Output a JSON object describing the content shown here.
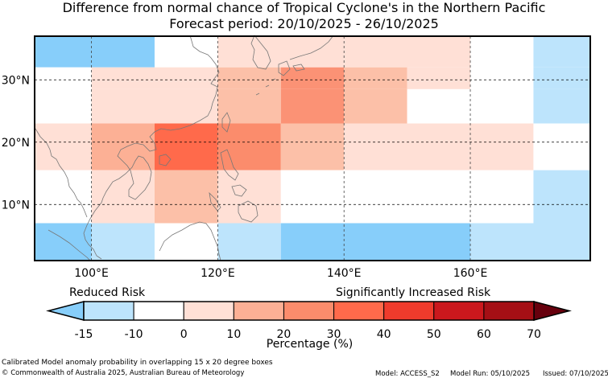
{
  "title": "Difference from normal chance of Tropical Cyclone's in the Northern Pacific",
  "subtitle": "Forecast period: 20/10/2025 - 26/10/2025",
  "map": {
    "lon_range": [
      91,
      179
    ],
    "lat_range": [
      1,
      37
    ],
    "lon_ticks": [
      {
        "value": 100,
        "label": "100°E"
      },
      {
        "value": 120,
        "label": "120°E"
      },
      {
        "value": 140,
        "label": "140°E"
      },
      {
        "value": 160,
        "label": "160°E"
      }
    ],
    "lat_ticks": [
      {
        "value": 10,
        "label": "10°N"
      },
      {
        "value": 20,
        "label": "20°N"
      },
      {
        "value": 30,
        "label": "30°N"
      }
    ],
    "grid_lons": [
      100,
      120,
      140,
      160
    ],
    "grid_lats": [
      10,
      20,
      30
    ],
    "boxes": [
      {
        "lon": [
          91,
          110
        ],
        "lat": [
          32,
          37
        ],
        "color": "#87cefa"
      },
      {
        "lon": [
          110,
          120
        ],
        "lat": [
          32,
          37
        ],
        "color": "#ffffff"
      },
      {
        "lon": [
          120,
          140
        ],
        "lat": [
          32,
          37
        ],
        "color": "#ffe0d6"
      },
      {
        "lon": [
          140,
          160
        ],
        "lat": [
          32,
          37
        ],
        "color": "#ffe0d6"
      },
      {
        "lon": [
          160,
          170
        ],
        "lat": [
          32,
          37
        ],
        "color": "#ffffff"
      },
      {
        "lon": [
          170,
          179
        ],
        "lat": [
          32,
          37
        ],
        "color": "#bde4fc"
      },
      {
        "lon": [
          91,
          100
        ],
        "lat": [
          28.5,
          32
        ],
        "color": "#ffffff"
      },
      {
        "lon": [
          100,
          120
        ],
        "lat": [
          28.5,
          32
        ],
        "color": "#ffe0d6"
      },
      {
        "lon": [
          120,
          130
        ],
        "lat": [
          28.5,
          32
        ],
        "color": "#fcc0a8"
      },
      {
        "lon": [
          130,
          140
        ],
        "lat": [
          28.5,
          32
        ],
        "color": "#fb9275"
      },
      {
        "lon": [
          140,
          150
        ],
        "lat": [
          28.5,
          32
        ],
        "color": "#fcc0a8"
      },
      {
        "lon": [
          150,
          160
        ],
        "lat": [
          28.5,
          32
        ],
        "color": "#ffe0d6"
      },
      {
        "lon": [
          160,
          170
        ],
        "lat": [
          28.5,
          32
        ],
        "color": "#ffffff"
      },
      {
        "lon": [
          170,
          179
        ],
        "lat": [
          28.5,
          32
        ],
        "color": "#bde4fc"
      },
      {
        "lon": [
          91,
          100
        ],
        "lat": [
          23,
          28.5
        ],
        "color": "#ffffff"
      },
      {
        "lon": [
          100,
          120
        ],
        "lat": [
          23,
          28.5
        ],
        "color": "#ffe0d6"
      },
      {
        "lon": [
          120,
          130
        ],
        "lat": [
          23,
          28.5
        ],
        "color": "#fcc0a8"
      },
      {
        "lon": [
          130,
          140
        ],
        "lat": [
          23,
          28.5
        ],
        "color": "#fb9275"
      },
      {
        "lon": [
          140,
          150
        ],
        "lat": [
          23,
          28.5
        ],
        "color": "#fcc0a8"
      },
      {
        "lon": [
          150,
          160
        ],
        "lat": [
          23,
          28.5
        ],
        "color": "#ffffff"
      },
      {
        "lon": [
          160,
          170
        ],
        "lat": [
          23,
          28.5
        ],
        "color": "#ffffff"
      },
      {
        "lon": [
          170,
          179
        ],
        "lat": [
          23,
          28.5
        ],
        "color": "#bde4fc"
      },
      {
        "lon": [
          91,
          100
        ],
        "lat": [
          15.5,
          23
        ],
        "color": "#ffe0d6"
      },
      {
        "lon": [
          100,
          110
        ],
        "lat": [
          15.5,
          23
        ],
        "color": "#fcb095"
      },
      {
        "lon": [
          110,
          120
        ],
        "lat": [
          15.5,
          23
        ],
        "color": "#ff6a4b"
      },
      {
        "lon": [
          120,
          130
        ],
        "lat": [
          15.5,
          23
        ],
        "color": "#fb8c6c"
      },
      {
        "lon": [
          130,
          140
        ],
        "lat": [
          15.5,
          23
        ],
        "color": "#fcc0a8"
      },
      {
        "lon": [
          140,
          170
        ],
        "lat": [
          15.5,
          23
        ],
        "color": "#ffe0d6"
      },
      {
        "lon": [
          170,
          179
        ],
        "lat": [
          15.5,
          23
        ],
        "color": "#ffffff"
      },
      {
        "lon": [
          91,
          100
        ],
        "lat": [
          7,
          15.5
        ],
        "color": "#ffffff"
      },
      {
        "lon": [
          100,
          110
        ],
        "lat": [
          7,
          15.5
        ],
        "color": "#ffe0d6"
      },
      {
        "lon": [
          110,
          120
        ],
        "lat": [
          7,
          15.5
        ],
        "color": "#fcc0a8"
      },
      {
        "lon": [
          120,
          130
        ],
        "lat": [
          7,
          15.5
        ],
        "color": "#ffe0d6"
      },
      {
        "lon": [
          130,
          170
        ],
        "lat": [
          7,
          15.5
        ],
        "color": "#ffffff"
      },
      {
        "lon": [
          170,
          179
        ],
        "lat": [
          7,
          15.5
        ],
        "color": "#bde4fc"
      },
      {
        "lon": [
          91,
          100
        ],
        "lat": [
          1,
          7
        ],
        "color": "#87cefa"
      },
      {
        "lon": [
          100,
          110
        ],
        "lat": [
          1,
          7
        ],
        "color": "#bde4fc"
      },
      {
        "lon": [
          110,
          120
        ],
        "lat": [
          1,
          7
        ],
        "color": "#ffffff"
      },
      {
        "lon": [
          120,
          130
        ],
        "lat": [
          1,
          7
        ],
        "color": "#bde4fc"
      },
      {
        "lon": [
          130,
          160
        ],
        "lat": [
          1,
          7
        ],
        "color": "#87cefa"
      },
      {
        "lon": [
          160,
          179
        ],
        "lat": [
          1,
          7
        ],
        "color": "#bde4fc"
      }
    ]
  },
  "colorbar": {
    "left_label": "Reduced Risk",
    "right_label": "Significantly Increased Risk",
    "axis_label": "Percentage (%)",
    "ticks": [
      "-15",
      "-10",
      "0",
      "10",
      "20",
      "30",
      "40",
      "50",
      "60",
      "70"
    ],
    "low_extend_color": "#87cefa",
    "high_extend_color": "#67000d",
    "colors": [
      "#bde4fc",
      "#ffffff",
      "#ffe0d6",
      "#fcb095",
      "#fb8c6c",
      "#ff6a4b",
      "#ef3b2c",
      "#cb181d",
      "#a50f15"
    ]
  },
  "footer": {
    "line1": "Calibrated Model anomaly probability in overlapping 15 x 20 degree boxes",
    "line2": "© Commonwealth of Australia 2025, Australian Bureau of Meteorology",
    "model": "Model: ACCESS_S2",
    "model_run": "Model Run: 05/10/2025",
    "issued": "Issued: 07/10/2025"
  }
}
